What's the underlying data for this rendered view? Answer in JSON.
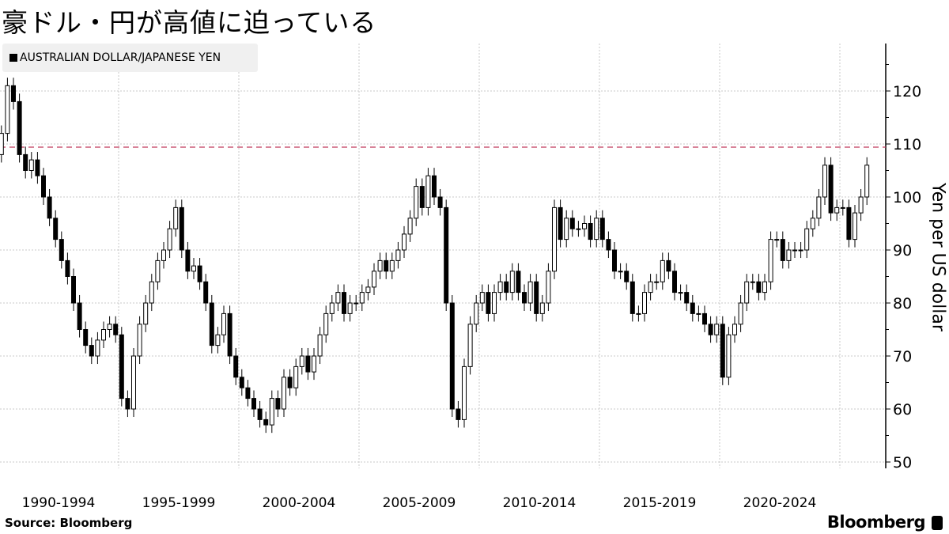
{
  "title": "豪ドル・円が高値に迫っている",
  "legend": {
    "label": "AUSTRALIAN DOLLAR/JAPANESE YEN",
    "color": "#000000"
  },
  "source": "Source:  Bloomberg",
  "brand": "Bloomberg",
  "chart_data": {
    "type": "candlestick",
    "title": "豪ドル・円が高値に迫っている",
    "ylabel": "Yen per US dollar",
    "ylim": [
      48,
      130
    ],
    "yticks": [
      50,
      60,
      70,
      80,
      90,
      100,
      110,
      120
    ],
    "xlim": [
      1990,
      2026.25
    ],
    "xtick_labels": [
      "1990-1994",
      "1995-1999",
      "2000-2004",
      "2005-2009",
      "2010-2014",
      "2015-2019",
      "2020-2024"
    ],
    "grid": true,
    "y_axis_side": "right",
    "reference_line": {
      "value": 109.4,
      "style": "dashed",
      "color": "#c0395a"
    },
    "series": [
      {
        "name": "AUSTRALIAN DOLLAR/JAPANESE YEN",
        "frequency": "quarterly (approx.)",
        "start": 1990.0,
        "start_open": 108,
        "close": [
          112,
          121,
          118,
          108,
          105,
          107,
          104,
          100,
          96,
          92,
          88,
          85,
          80,
          75,
          72,
          70,
          73,
          75,
          76,
          74,
          62,
          60,
          70,
          76,
          80,
          84,
          88,
          90,
          94,
          98,
          90,
          86,
          87,
          84,
          80,
          72,
          74,
          78,
          70,
          66,
          64,
          62,
          60,
          58,
          57,
          62,
          60,
          66,
          64,
          68,
          70,
          67,
          70,
          74,
          78,
          80,
          82,
          78,
          80,
          80,
          82,
          83,
          86,
          88,
          86,
          88,
          90,
          93,
          96,
          102,
          98,
          104,
          100,
          98,
          80,
          60,
          58,
          68,
          76,
          80,
          82,
          78,
          82,
          84,
          82,
          86,
          82,
          80,
          84,
          78,
          80,
          86,
          98,
          92,
          96,
          94,
          94,
          95,
          92,
          96,
          92,
          90,
          86,
          86,
          84,
          78,
          78,
          82,
          84,
          84,
          88,
          86,
          82,
          82,
          80,
          78,
          78,
          76,
          74,
          76,
          66,
          74,
          76,
          80,
          84,
          84,
          82,
          84,
          92,
          92,
          88,
          90,
          90,
          90,
          94,
          96,
          100,
          106,
          97,
          98,
          98,
          92,
          97,
          100,
          106
        ]
      }
    ]
  }
}
